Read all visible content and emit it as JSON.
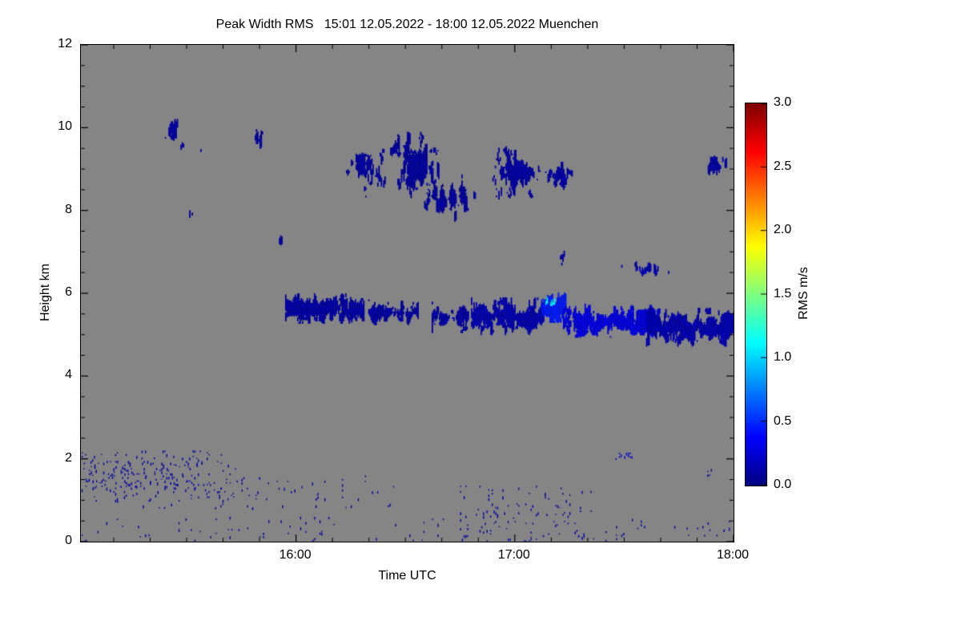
{
  "colorbar": {
    "label": "RMS m/s",
    "min": 0,
    "max": 3,
    "colormap": "jet",
    "ticks": [
      {
        "label": "3.0",
        "value": 3.0
      },
      {
        "label": "2.5",
        "value": 2.5
      },
      {
        "label": "2.0",
        "value": 2.0
      },
      {
        "label": "1.5",
        "value": 1.5
      },
      {
        "label": "1.0",
        "value": 1.0
      },
      {
        "label": "0.5",
        "value": 0.5
      },
      {
        "label": "0.0",
        "value": 0.0
      }
    ]
  },
  "chart_data": {
    "type": "heatmap",
    "title": "Peak Width RMS   15:01 12.05.2022 - 18:00 12.05.2022 Muenchen",
    "station": "Muenchen",
    "time_span": "15:01 12.05.2022 - 18:00 12.05.2022",
    "xlabel": "Time UTC",
    "ylabel": "Height km",
    "value_label": "RMS m/s",
    "value_range": [
      0,
      3
    ],
    "colormap": "jet",
    "background_color": "#858585",
    "background_meaning": "no signal / clear air",
    "time_start_h": 15.0167,
    "time_end_h": 18.0,
    "ylim": [
      0,
      12
    ],
    "x_ticks": [
      {
        "label": "16:00",
        "hour": 16
      },
      {
        "label": "17:00",
        "hour": 17
      },
      {
        "label": "18:00",
        "hour": 18
      }
    ],
    "y_ticks": [
      {
        "label": "0",
        "km": 0
      },
      {
        "label": "2",
        "km": 2
      },
      {
        "label": "4",
        "km": 4
      },
      {
        "label": "6",
        "km": 6
      },
      {
        "label": "8",
        "km": 8
      },
      {
        "label": "10",
        "km": 10
      },
      {
        "label": "12",
        "km": 12
      }
    ],
    "features": [
      {
        "t0": 15.4,
        "t1": 15.46,
        "h0": 9.6,
        "h1": 10.3,
        "rms": 0.12,
        "density": 0.72,
        "shape": "cloud"
      },
      {
        "t0": 15.45,
        "t1": 15.52,
        "h0": 9.35,
        "h1": 9.85,
        "rms": 0.1,
        "density": 0.45,
        "shape": "cloud"
      },
      {
        "t0": 15.53,
        "t1": 15.6,
        "h0": 9.3,
        "h1": 9.6,
        "rms": 0.1,
        "density": 0.35,
        "shape": "cloud"
      },
      {
        "t0": 15.49,
        "t1": 15.54,
        "h0": 7.65,
        "h1": 8.15,
        "rms": 0.12,
        "density": 0.7,
        "shape": "cloud"
      },
      {
        "t0": 15.8,
        "t1": 15.85,
        "h0": 9.45,
        "h1": 10.05,
        "rms": 0.12,
        "density": 0.75,
        "shape": "cloud"
      },
      {
        "t0": 15.9,
        "t1": 15.95,
        "h0": 6.75,
        "h1": 7.95,
        "rms": 0.1,
        "density": 0.55,
        "shape": "cloud"
      },
      {
        "t0": 16.19,
        "t1": 16.42,
        "h0": 8.3,
        "h1": 9.75,
        "rms": 0.12,
        "density": 0.72,
        "shape": "cloud"
      },
      {
        "t0": 16.43,
        "t1": 16.67,
        "h0": 8.3,
        "h1": 9.9,
        "rms": 0.1,
        "density": 0.88,
        "shape": "cloud"
      },
      {
        "t0": 16.58,
        "t1": 16.82,
        "h0": 7.7,
        "h1": 8.9,
        "rms": 0.1,
        "density": 0.8,
        "shape": "cloud"
      },
      {
        "t0": 16.87,
        "t1": 17.13,
        "h0": 8.25,
        "h1": 9.55,
        "rms": 0.12,
        "density": 0.78,
        "shape": "cloud"
      },
      {
        "t0": 17.1,
        "t1": 17.28,
        "h0": 8.4,
        "h1": 9.35,
        "rms": 0.12,
        "density": 0.65,
        "shape": "cloud"
      },
      {
        "t0": 17.29,
        "t1": 17.41,
        "h0": 8.55,
        "h1": 9.0,
        "rms": 0.1,
        "density": 0.45,
        "shape": "cloud"
      },
      {
        "t0": 17.44,
        "t1": 17.48,
        "h0": 8.6,
        "h1": 8.9,
        "rms": 0.1,
        "density": 0.4,
        "shape": "cloud"
      },
      {
        "t0": 17.19,
        "t1": 17.25,
        "h0": 6.65,
        "h1": 7.35,
        "rms": 0.12,
        "density": 0.6,
        "shape": "cloud"
      },
      {
        "t0": 17.47,
        "t1": 17.72,
        "h0": 6.4,
        "h1": 6.8,
        "rms": 0.15,
        "density": 0.7,
        "shape": "cloud"
      },
      {
        "t0": 17.74,
        "t1": 17.8,
        "h0": 6.45,
        "h1": 6.72,
        "rms": 0.12,
        "density": 0.5,
        "shape": "cloud"
      },
      {
        "t0": 17.86,
        "t1": 17.98,
        "h0": 8.7,
        "h1": 9.5,
        "rms": 0.12,
        "density": 0.68,
        "shape": "cloud"
      },
      {
        "t0": 15.95,
        "t1": 16.31,
        "h0": 5.3,
        "h1": 6.0,
        "rms": 0.12,
        "density": 0.85,
        "shape": "band"
      },
      {
        "t0": 16.33,
        "t1": 16.56,
        "h0": 5.25,
        "h1": 5.85,
        "rms": 0.12,
        "density": 0.78,
        "shape": "band"
      },
      {
        "t0": 16.62,
        "t1": 16.79,
        "h0": 5.05,
        "h1": 5.8,
        "rms": 0.12,
        "density": 0.72,
        "shape": "band"
      },
      {
        "t0": 16.8,
        "t1": 17.13,
        "h0": 5.0,
        "h1": 5.9,
        "rms": 0.15,
        "density": 0.8,
        "shape": "band"
      },
      {
        "t0": 17.12,
        "t1": 17.23,
        "h0": 5.3,
        "h1": 6.05,
        "rms": 0.45,
        "density": 0.8,
        "shape": "band"
      },
      {
        "t0": 17.14,
        "t1": 17.18,
        "h0": 5.5,
        "h1": 6.05,
        "rms": 1.1,
        "density": 0.5,
        "shape": "band"
      },
      {
        "t0": 17.22,
        "t1": 17.66,
        "h0": 4.95,
        "h1": 5.75,
        "rms": 0.3,
        "density": 0.85,
        "shape": "band"
      },
      {
        "t0": 17.6,
        "t1": 18.0,
        "h0": 4.75,
        "h1": 5.65,
        "rms": 0.15,
        "density": 0.85,
        "shape": "band"
      },
      {
        "t0": 15.02,
        "t1": 15.75,
        "h0": 1.0,
        "h1": 2.2,
        "rms": 0.12,
        "density": 0.05,
        "shape": "speckle"
      },
      {
        "t0": 15.03,
        "t1": 15.55,
        "h0": 1.3,
        "h1": 1.95,
        "rms": 0.12,
        "density": 0.09,
        "shape": "speckle"
      },
      {
        "t0": 15.3,
        "t1": 16.45,
        "h0": 0.8,
        "h1": 1.6,
        "rms": 0.12,
        "density": 0.025,
        "shape": "speckle"
      },
      {
        "t0": 15.02,
        "t1": 16.7,
        "h0": 0.0,
        "h1": 0.6,
        "rms": 0.12,
        "density": 0.02,
        "shape": "speckle"
      },
      {
        "t0": 16.75,
        "t1": 17.35,
        "h0": 0.0,
        "h1": 1.35,
        "rms": 0.12,
        "density": 0.05,
        "shape": "speckle"
      },
      {
        "t0": 17.35,
        "t1": 18.0,
        "h0": 0.0,
        "h1": 0.55,
        "rms": 0.12,
        "density": 0.03,
        "shape": "speckle"
      },
      {
        "t0": 17.46,
        "t1": 17.54,
        "h0": 2.0,
        "h1": 2.15,
        "rms": 0.25,
        "density": 0.3,
        "shape": "speckle"
      },
      {
        "t0": 17.88,
        "t1": 17.94,
        "h0": 1.55,
        "h1": 1.75,
        "rms": 0.12,
        "density": 0.15,
        "shape": "speckle"
      }
    ]
  }
}
